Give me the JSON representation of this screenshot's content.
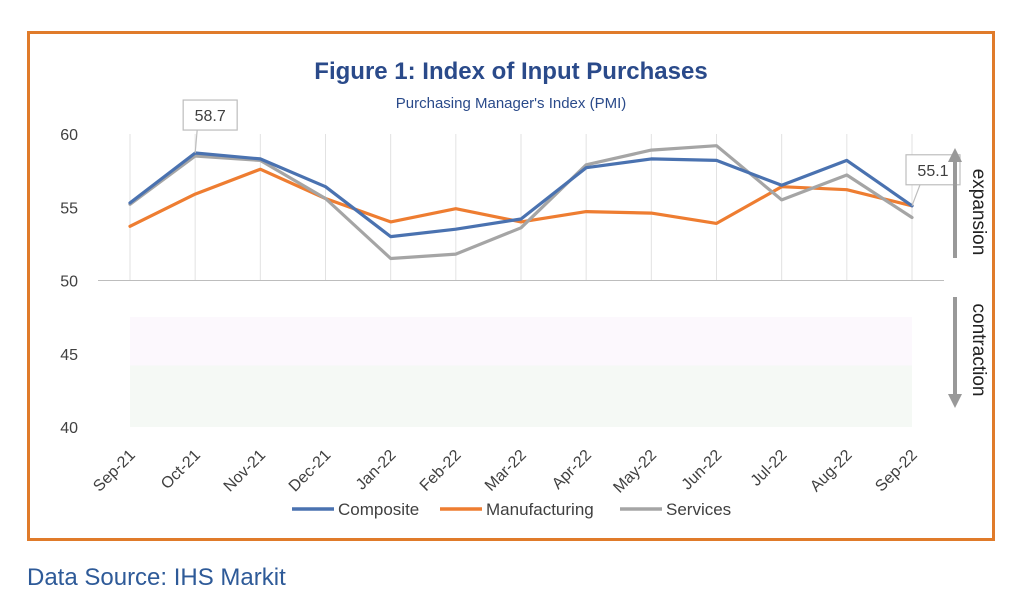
{
  "chart_data": {
    "type": "line",
    "title": "Figure 1: Index of Input Purchases",
    "subtitle": "Purchasing Manager's Index (PMI)",
    "categories": [
      "Sep-21",
      "Oct-21",
      "Nov-21",
      "Dec-21",
      "Jan-22",
      "Feb-22",
      "Mar-22",
      "Apr-22",
      "May-22",
      "Jun-22",
      "Jul-22",
      "Aug-22",
      "Sep-22"
    ],
    "series": [
      {
        "name": "Composite",
        "color": "#4a72b0",
        "values": [
          55.3,
          58.7,
          58.3,
          56.4,
          53.0,
          53.5,
          54.2,
          57.7,
          58.3,
          58.2,
          56.5,
          58.2,
          55.1
        ]
      },
      {
        "name": "Manufacturing",
        "color": "#ee7d31",
        "values": [
          53.7,
          55.9,
          57.6,
          55.6,
          54.0,
          54.9,
          54.0,
          54.7,
          54.6,
          53.9,
          56.4,
          56.2,
          55.1
        ]
      },
      {
        "name": "Services",
        "color": "#a5a5a5",
        "values": [
          55.2,
          58.5,
          58.2,
          55.6,
          51.5,
          51.8,
          53.6,
          57.9,
          58.9,
          59.2,
          55.5,
          57.2,
          54.3
        ]
      }
    ],
    "ylim": [
      40,
      60
    ],
    "yticks": [
      40,
      45,
      50,
      55,
      60
    ],
    "annotations": [
      {
        "text": "58.7",
        "category": "Oct-21",
        "value": 58.7
      },
      {
        "text": "55.1",
        "category": "Sep-22",
        "value": 55.1
      }
    ],
    "side_labels": {
      "upper": "expansion",
      "lower": "contraction"
    },
    "legend_position": "bottom",
    "grid": "vertical"
  },
  "source": "Data Source: IHS Markit"
}
